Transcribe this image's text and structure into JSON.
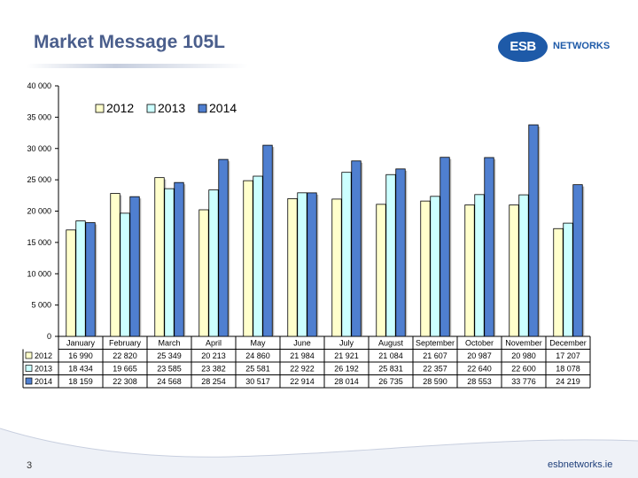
{
  "slide": {
    "title": "Market Message 105L",
    "page_number": "3",
    "footer_url": "esbnetworks.ie"
  },
  "logo": {
    "mark": "ESB",
    "text": "NETWORKS",
    "color": "#1e5aa8"
  },
  "chart_data": {
    "type": "bar",
    "categories": [
      "January",
      "February",
      "March",
      "April",
      "May",
      "June",
      "July",
      "August",
      "September",
      "October",
      "November",
      "December"
    ],
    "series": [
      {
        "name": "2012",
        "values": [
          16990,
          22820,
          25349,
          20213,
          24860,
          21984,
          21921,
          21084,
          21607,
          20987,
          20980,
          17207
        ],
        "labels": [
          "16 990",
          "22 820",
          "25 349",
          "20 213",
          "24 860",
          "21 984",
          "21 921",
          "21 084",
          "21 607",
          "20 987",
          "20 980",
          "17 207"
        ],
        "color": "#ffffcc"
      },
      {
        "name": "2013",
        "values": [
          18434,
          19665,
          23585,
          23382,
          25581,
          22922,
          26192,
          25831,
          22357,
          22640,
          22600,
          18078
        ],
        "labels": [
          "18 434",
          "19 665",
          "23 585",
          "23 382",
          "25 581",
          "22 922",
          "26 192",
          "25 831",
          "22 357",
          "22 640",
          "22 600",
          "18 078"
        ],
        "color": "#ccffff"
      },
      {
        "name": "2014",
        "values": [
          18159,
          22308,
          24568,
          28254,
          30517,
          22914,
          28014,
          26735,
          28590,
          28553,
          33776,
          24219
        ],
        "labels": [
          "18 159",
          "22 308",
          "24 568",
          "28 254",
          "30 517",
          "22 914",
          "28 014",
          "26 735",
          "28 590",
          "28 553",
          "33 776",
          "24 219"
        ],
        "color": "#4f7fd0"
      }
    ],
    "ylim": [
      0,
      40000
    ],
    "yticks": [
      0,
      5000,
      10000,
      15000,
      20000,
      25000,
      30000,
      35000,
      40000
    ],
    "ytick_labels": [
      "0",
      "5 000",
      "10 000",
      "15 000",
      "20 000",
      "25 000",
      "30 000",
      "35 000",
      "40 000"
    ],
    "grid": false,
    "legend_position": "top-left",
    "data_table": true
  }
}
